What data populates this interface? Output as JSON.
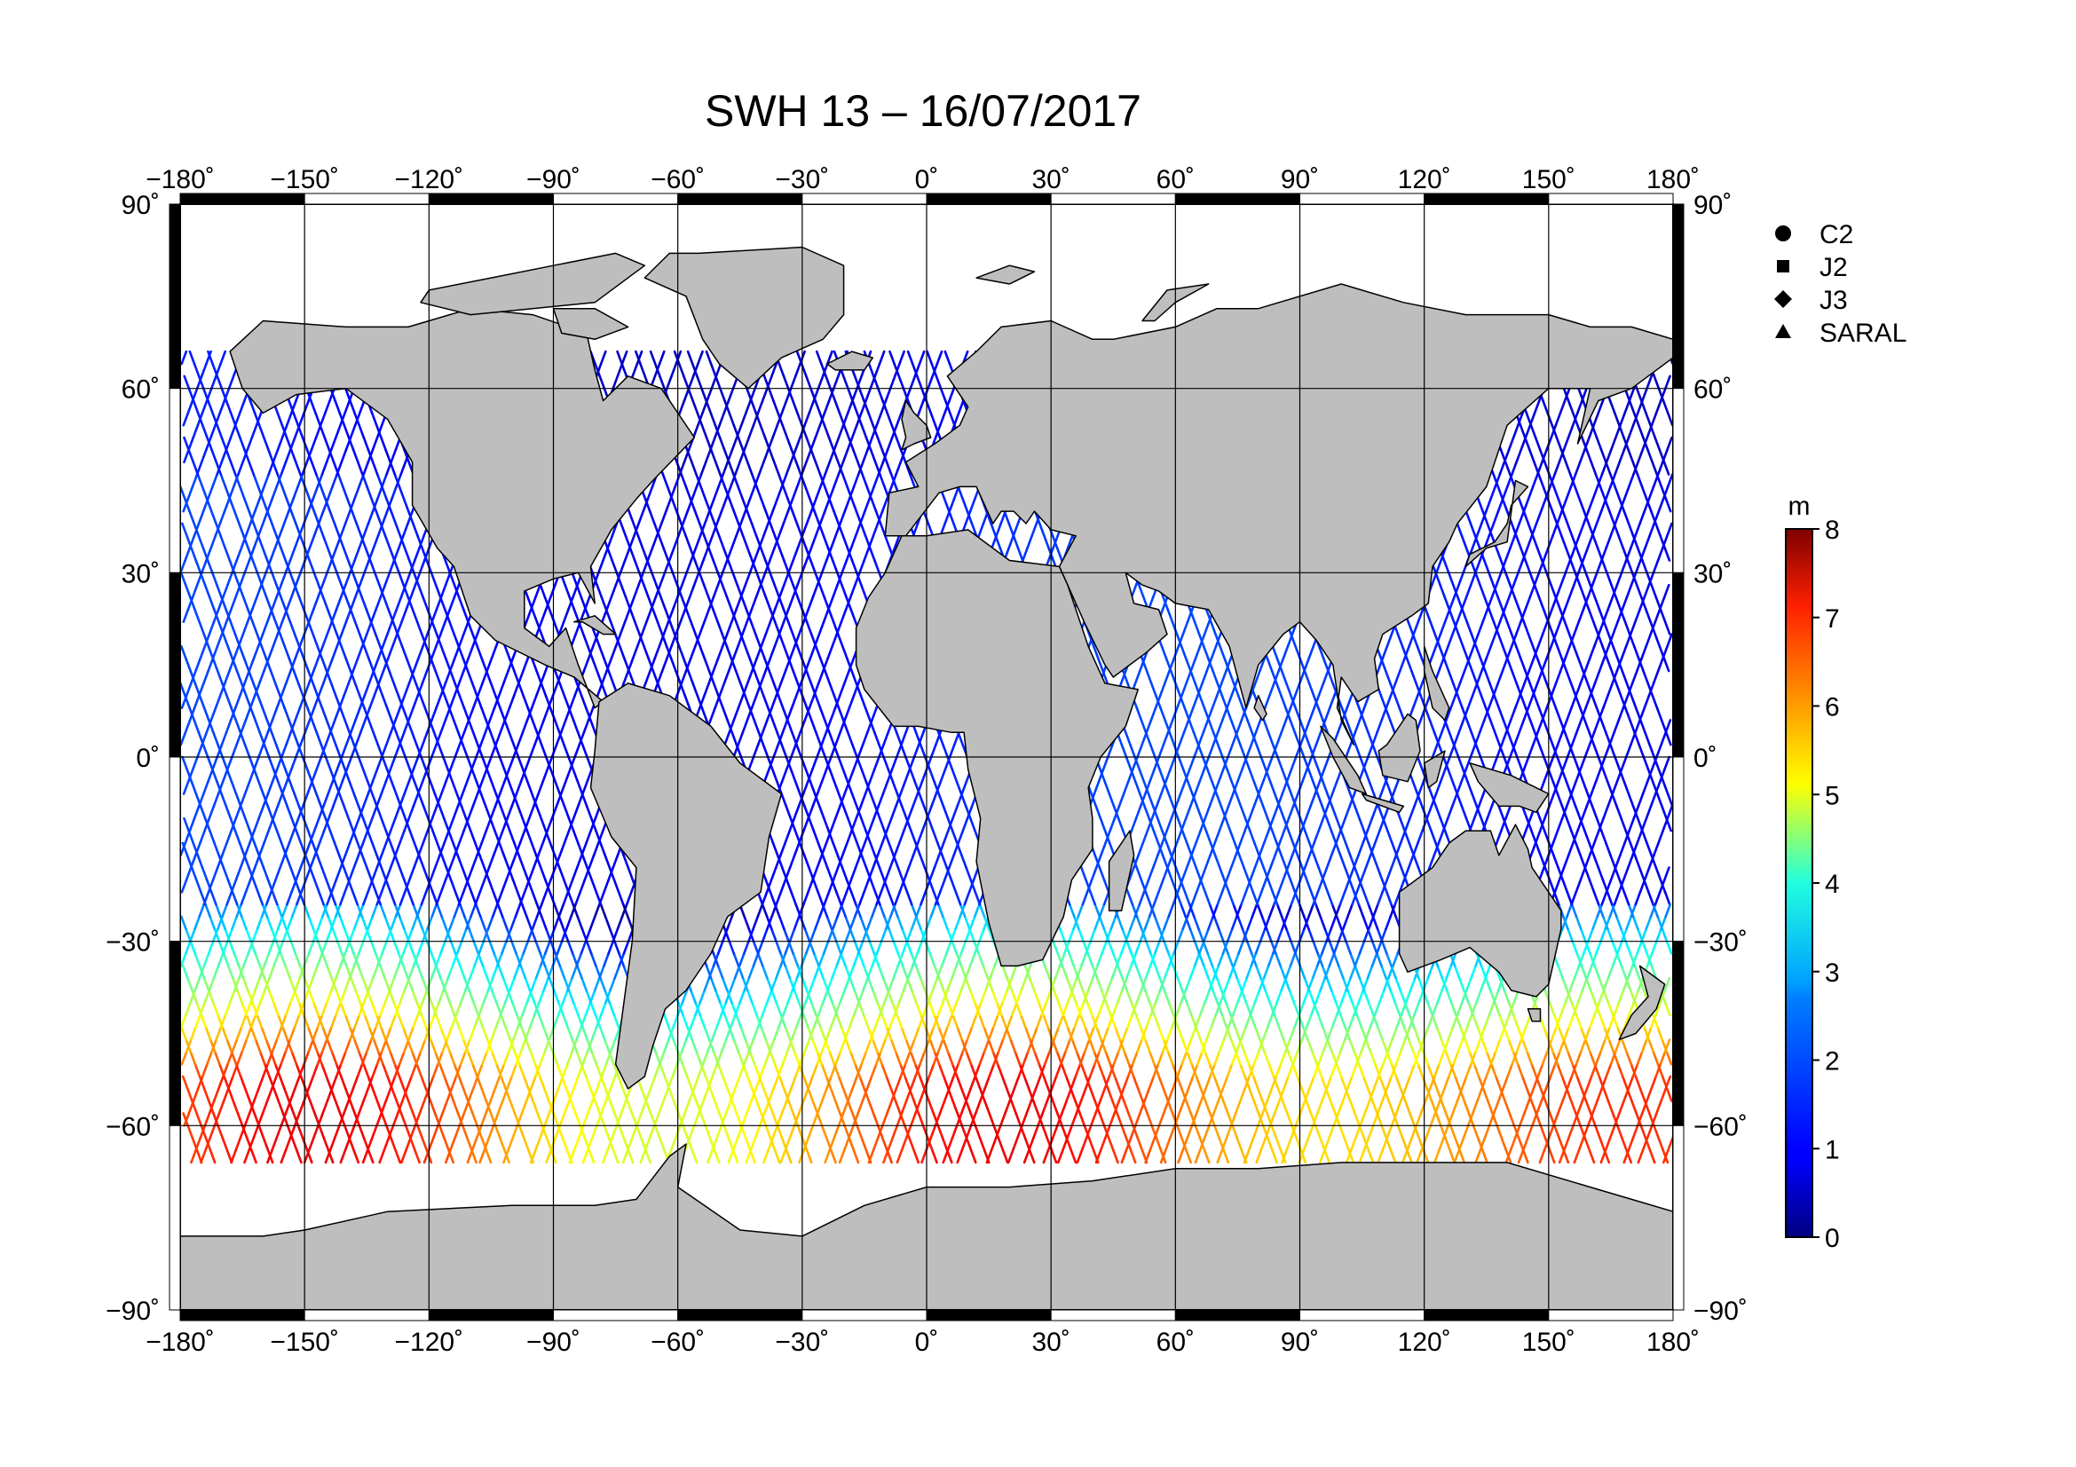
{
  "title": "SWH 13 – 16/07/2017",
  "x_ticks": [
    "−180˚",
    "−150˚",
    "−120˚",
    "−90˚",
    "−60˚",
    "−30˚",
    "0˚",
    "30˚",
    "60˚",
    "90˚",
    "120˚",
    "150˚",
    "180˚"
  ],
  "y_ticks_left": [
    "90˚",
    "60˚",
    "30˚",
    "0˚",
    "−30˚",
    "−60˚",
    "−90˚"
  ],
  "y_ticks_right": [
    "90˚",
    "60˚",
    "30˚",
    "0˚",
    "−30˚",
    "−60˚",
    "−90˚"
  ],
  "legend": {
    "items": [
      {
        "symbol": "circle",
        "label": "C2"
      },
      {
        "symbol": "square",
        "label": "J2"
      },
      {
        "symbol": "diamond",
        "label": "J3"
      },
      {
        "symbol": "triangle",
        "label": "SARAL"
      }
    ]
  },
  "colorbar": {
    "unit": "m",
    "min": 0,
    "max": 8,
    "ticks": [
      "8",
      "7",
      "6",
      "5",
      "4",
      "3",
      "2",
      "1",
      "0"
    ],
    "colormap": "jet"
  },
  "colors": {
    "land": "#bebebe",
    "ocean": "#ffffff",
    "coast": "#000000"
  },
  "chart_data": {
    "type": "map",
    "projection": "equirectangular",
    "lon_range": [
      -180,
      180
    ],
    "lat_range": [
      -90,
      90
    ],
    "variable": "SWH",
    "unit": "m",
    "color_range": [
      0,
      8
    ]
  }
}
